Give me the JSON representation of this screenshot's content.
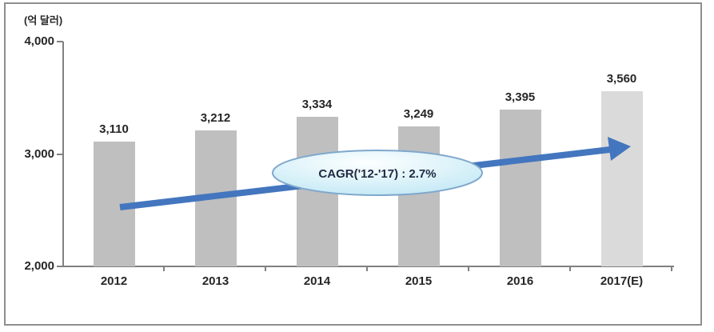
{
  "chart_data": {
    "type": "bar",
    "title": "",
    "unit_label": "(억 달러)",
    "categories": [
      "2012",
      "2013",
      "2014",
      "2015",
      "2016",
      "2017(E)"
    ],
    "values": [
      3110,
      3212,
      3334,
      3249,
      3395,
      3560
    ],
    "value_labels": [
      "3,110",
      "3,212",
      "3,334",
      "3,249",
      "3,395",
      "3,560"
    ],
    "ylim": [
      2000,
      4000
    ],
    "yticks": [
      4000,
      3000,
      2000
    ],
    "ytick_labels": [
      "4,000",
      "3,000",
      "2,000"
    ],
    "grid": false,
    "legend_position": "none",
    "bar_color": "#bfbfbf",
    "forecast_bar_color": "#dadada",
    "forecast_index": 5,
    "axis_color": "#808080",
    "text_color": "#262626",
    "trend_arrow": {
      "color": "#4376be"
    },
    "annotation": {
      "text": "CAGR('12-'17) : 2.7%",
      "fill_top": "#fdffff",
      "fill_bottom": "#bce6f4",
      "border_color": "#7fa8cc",
      "text_color": "#1f2a44"
    }
  }
}
